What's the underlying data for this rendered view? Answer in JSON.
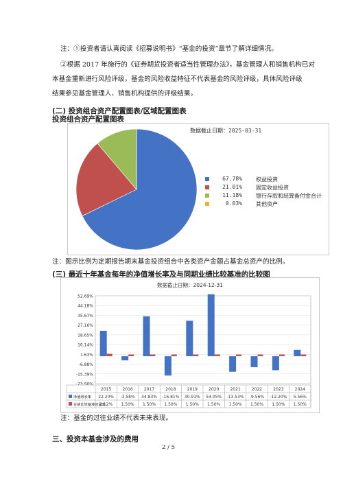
{
  "notes": {
    "note1": "注：①投资者请认真阅读《招募说明书》“基金的投资”章节了解详细情况。",
    "note2_l1": "②根据 2017 年施行的《证券期货投资者适当性管理办法》，基金管理人和销售机构已对",
    "note2_l2": "本基金重新进行风险评级，基金的风险收益特征不代表基金的风险评级，具体风险评级",
    "note2_l3": "结果参见基金管理人、销售机构提供的评级结果。"
  },
  "section2": {
    "title": "(二) 投资组合资产配置图表/区域配置图表",
    "subtitle": "投资组合资产配置图表",
    "note": "注：图示比例为定期报告期末基金投资组合中各类资产金额占基金总资产的比例。"
  },
  "section3": {
    "title": "(三) 最近十年基金每年的净值增长率及与同期业绩比较基准的比较图",
    "note": "注：基金的过往业绩不代表未来表现。"
  },
  "section_fee": {
    "title": "三、投资本基金涉及的费用"
  },
  "page_number": "2 / 5",
  "chart_data": [
    {
      "type": "pie",
      "title": "数据截止日期：2025-03-31",
      "legend_position": "right",
      "slices": [
        {
          "label": "权益投资",
          "value": 67.78,
          "value_label": "67.78%",
          "color": "#4472c4"
        },
        {
          "label": "固定收益投资",
          "value": 21.01,
          "value_label": "21.01%",
          "color": "#c0504d"
        },
        {
          "label": "银行存款和结算备付金合计",
          "value": 11.18,
          "value_label": "11.18%",
          "color": "#9bbb59"
        },
        {
          "label": "其他资产",
          "value": 0.03,
          "value_label": "0.03%",
          "color": "#f0b030"
        }
      ]
    },
    {
      "type": "bar",
      "title": "数据截止日期：2024-12-31",
      "categories": [
        "2015",
        "2016",
        "2017",
        "2018",
        "2019",
        "2020",
        "2021",
        "2022",
        "2023",
        "2024"
      ],
      "ylim": [
        -23.9,
        52.69
      ],
      "yticks": [
        "52.69%",
        "44.18%",
        "35.67%",
        "27.16%",
        "18.65%",
        "10.14%",
        "1.63%",
        "-6.88%",
        "-15.39%",
        "-23.90%"
      ],
      "ytick_values": [
        52.69,
        44.18,
        35.67,
        27.16,
        18.65,
        10.14,
        1.63,
        -6.88,
        -15.39,
        -23.9
      ],
      "grid": true,
      "series": [
        {
          "name": "净值增长率",
          "color": "#4472c4",
          "values": [
            22.2,
            -3.58,
            34.83,
            -16.81,
            30.91,
            54.05,
            -13.53,
            -9.56,
            -12.2,
            5.56
          ],
          "labels": [
            "22.20%",
            "-3.58%",
            "34.83%",
            "-16.81%",
            "30.91%",
            "54.05%",
            "-13.53%",
            "-9.56%",
            "-12.20%",
            "5.56%"
          ]
        },
        {
          "name": "业绩比较基准收益率",
          "color": "#c0504d",
          "values": [
            2.12,
            1.5,
            1.5,
            1.5,
            1.5,
            1.5,
            1.5,
            1.5,
            1.5,
            1.5
          ],
          "labels": [
            "2.12%",
            "1.50%",
            "1.50%",
            "1.50%",
            "1.50%",
            "1.50%",
            "1.50%",
            "1.50%",
            "1.50%",
            "1.50%"
          ]
        }
      ]
    }
  ]
}
